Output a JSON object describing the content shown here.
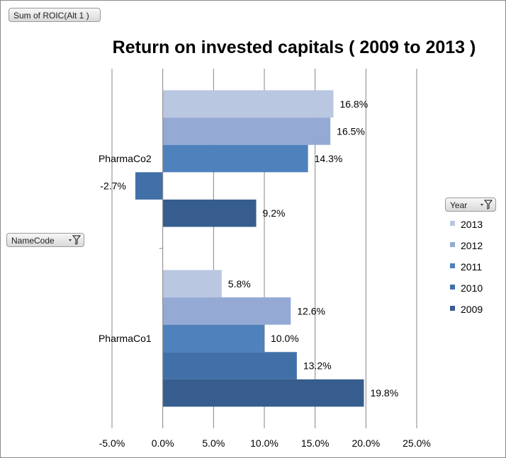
{
  "chart_data": {
    "type": "bar",
    "orientation": "horizontal",
    "title": "Return on invested capitals ( 2009 to 2013 )",
    "categories": [
      "PharmaCo2",
      "PharmaCo1"
    ],
    "series": [
      {
        "name": "2013",
        "color": "#b9c7e1",
        "values": [
          16.8,
          5.8
        ]
      },
      {
        "name": "2012",
        "color": "#94aad4",
        "values": [
          16.5,
          12.6
        ]
      },
      {
        "name": "2011",
        "color": "#4f81bd",
        "values": [
          14.3,
          10.0
        ]
      },
      {
        "name": "2010",
        "color": "#4170a8",
        "values": [
          -2.7,
          13.2
        ]
      },
      {
        "name": "2009",
        "color": "#365d8d",
        "values": [
          9.2,
          19.8
        ]
      }
    ],
    "data_labels": [
      [
        "16.8%",
        "16.5%",
        "14.3%",
        "-2.7%",
        "9.2%"
      ],
      [
        "5.8%",
        "12.6%",
        "10.0%",
        "13.2%",
        "19.8%"
      ]
    ],
    "xlim": [
      -5,
      25
    ],
    "x_ticks": [
      -5,
      0,
      5,
      10,
      15,
      20,
      25
    ],
    "x_tick_labels": [
      "-5.0%",
      "0.0%",
      "5.0%",
      "10.0%",
      "15.0%",
      "20.0%",
      "25.0%"
    ],
    "grid": true,
    "legend_position": "right",
    "legend_title": "Year",
    "legend_order": [
      "2013",
      "2012",
      "2011",
      "2010",
      "2009"
    ]
  },
  "pivot": {
    "values_field": "Sum of ROIC(Alt 1 )",
    "row_field": "NameCode",
    "legend_field": "Year"
  },
  "icons": {
    "filter": "filter-dropdown-icon"
  }
}
